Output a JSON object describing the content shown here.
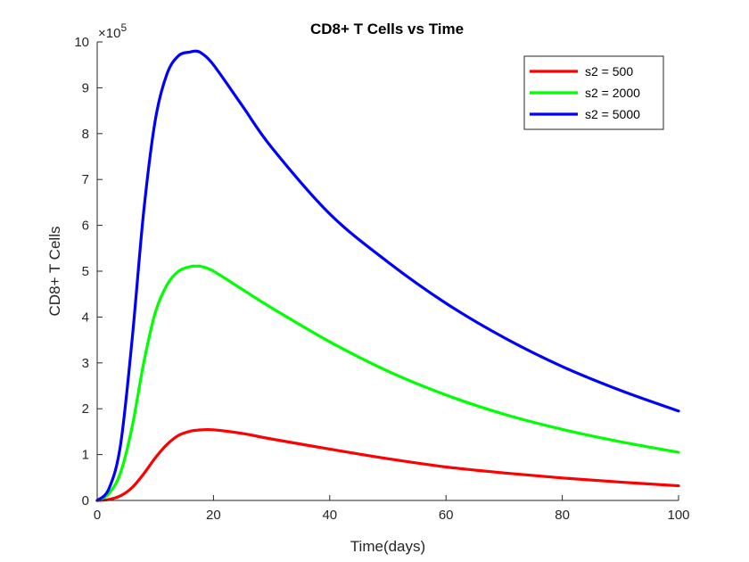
{
  "chart_data": {
    "type": "line",
    "title": "CD8+ T Cells vs Time",
    "xlabel": "Time(days)",
    "ylabel": "CD8+ T Cells",
    "xlim": [
      0,
      100
    ],
    "ylim": [
      0,
      1000000
    ],
    "x_ticks": [
      0,
      20,
      40,
      60,
      80,
      100
    ],
    "y_ticks": [
      0,
      1,
      2,
      3,
      4,
      5,
      6,
      7,
      8,
      9,
      10
    ],
    "y_multiplier": {
      "base": "×10",
      "exponent": "5"
    },
    "grid": false,
    "legend_position": "top-right",
    "x": [
      0,
      2,
      4,
      6,
      8,
      10,
      12,
      14,
      16,
      17,
      18,
      20,
      25,
      30,
      40,
      50,
      60,
      70,
      80,
      90,
      100
    ],
    "series": [
      {
        "name": "s2 = 500",
        "color": "#ff0000",
        "values": [
          0,
          2000,
          10000,
          28000,
          58000,
          93000,
          122000,
          142000,
          151000,
          153000,
          154000,
          154000,
          146000,
          134000,
          112000,
          91000,
          73000,
          60000,
          49000,
          40000,
          32000
        ]
      },
      {
        "name": "s2 = 2000",
        "color": "#00ff00",
        "values": [
          0,
          15000,
          60000,
          160000,
          300000,
          410000,
          470000,
          500000,
          510000,
          511000,
          510000,
          500000,
          460000,
          420000,
          346000,
          282000,
          230000,
          188000,
          155000,
          128000,
          105000
        ]
      },
      {
        "name": "s2 = 5000",
        "color": "#0000ff",
        "values": [
          0,
          25000,
          120000,
          350000,
          630000,
          830000,
          930000,
          970000,
          978000,
          980000,
          975000,
          950000,
          860000,
          770000,
          625000,
          520000,
          430000,
          355000,
          292000,
          240000,
          195000
        ]
      }
    ]
  }
}
